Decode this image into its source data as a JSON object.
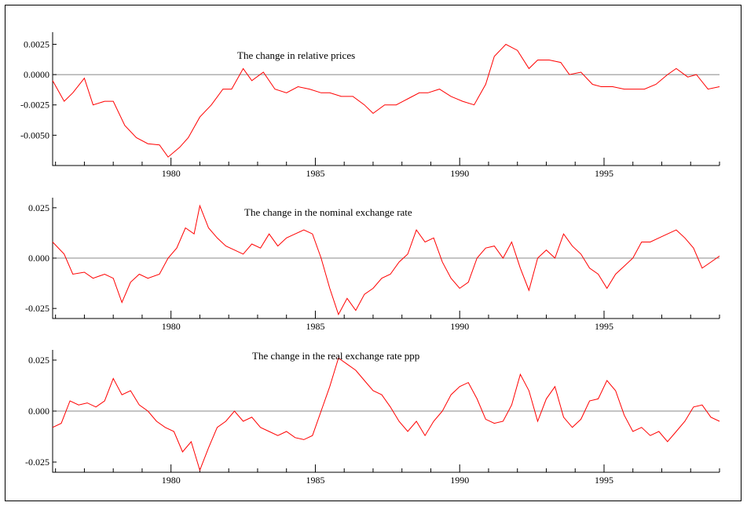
{
  "chart_data": [
    {
      "type": "line",
      "title": "The change in relative prices",
      "xlim": [
        1975.9,
        1999.0
      ],
      "ylim": [
        -0.0075,
        0.0035
      ],
      "xticks": [
        1980,
        1985,
        1990,
        1995
      ],
      "yticks": [
        0.0025,
        0.0,
        -0.0025,
        -0.005
      ],
      "ytick_labels": [
        "0.0025",
        "0.0000",
        "-0.0025",
        "-0.0050"
      ],
      "reference_line": 0,
      "series": [
        {
          "color": "#ff0000",
          "x": [
            1975.9,
            1976.3,
            1976.6,
            1977.0,
            1977.3,
            1977.7,
            1978.0,
            1978.4,
            1978.8,
            1979.2,
            1979.6,
            1979.9,
            1980.3,
            1980.6,
            1981.0,
            1981.4,
            1981.8,
            1982.1,
            1982.5,
            1982.8,
            1983.2,
            1983.6,
            1984.0,
            1984.4,
            1984.8,
            1985.2,
            1985.5,
            1985.9,
            1986.3,
            1986.7,
            1987.0,
            1987.4,
            1987.8,
            1988.2,
            1988.6,
            1988.9,
            1989.3,
            1989.7,
            1990.1,
            1990.5,
            1990.9,
            1991.2,
            1991.6,
            1992.0,
            1992.4,
            1992.7,
            1993.1,
            1993.5,
            1993.8,
            1994.2,
            1994.6,
            1994.9,
            1995.3,
            1995.7,
            1996.1,
            1996.4,
            1996.8,
            1997.2,
            1997.5,
            1997.9,
            1998.2,
            1998.6,
            1999.0
          ],
          "y": [
            -0.0005,
            -0.0022,
            -0.0015,
            -0.0003,
            -0.0025,
            -0.0022,
            -0.0022,
            -0.0042,
            -0.0052,
            -0.0057,
            -0.0058,
            -0.0068,
            -0.006,
            -0.0052,
            -0.0035,
            -0.0025,
            -0.0012,
            -0.0012,
            0.0005,
            -0.0005,
            0.0002,
            -0.0012,
            -0.0015,
            -0.001,
            -0.0012,
            -0.0015,
            -0.0015,
            -0.0018,
            -0.0018,
            -0.0025,
            -0.0032,
            -0.0025,
            -0.0025,
            -0.002,
            -0.0015,
            -0.0015,
            -0.0012,
            -0.0018,
            -0.0022,
            -0.0025,
            -0.0008,
            0.0015,
            0.0025,
            0.002,
            0.0005,
            0.0012,
            0.0012,
            0.001,
            0.0,
            0.0002,
            -0.0008,
            -0.001,
            -0.001,
            -0.0012,
            -0.0012,
            -0.0012,
            -0.0008,
            0.0,
            0.0005,
            -0.0002,
            0.0,
            -0.0012,
            -0.001
          ]
        }
      ]
    },
    {
      "type": "line",
      "title": "The change in the nominal exchange rate",
      "xlim": [
        1975.9,
        1999.0
      ],
      "ylim": [
        -0.03,
        0.03
      ],
      "xticks": [
        1980,
        1985,
        1990,
        1995
      ],
      "yticks": [
        0.025,
        0.0,
        -0.025
      ],
      "ytick_labels": [
        "0.025",
        "0.000",
        "-0.025"
      ],
      "reference_line": 0,
      "series": [
        {
          "color": "#ff0000",
          "x": [
            1975.9,
            1976.3,
            1976.6,
            1977.0,
            1977.3,
            1977.7,
            1978.0,
            1978.3,
            1978.6,
            1978.9,
            1979.2,
            1979.6,
            1979.9,
            1980.2,
            1980.5,
            1980.8,
            1981.0,
            1981.3,
            1981.6,
            1981.9,
            1982.2,
            1982.5,
            1982.8,
            1983.1,
            1983.4,
            1983.7,
            1984.0,
            1984.3,
            1984.6,
            1984.9,
            1985.2,
            1985.5,
            1985.8,
            1986.1,
            1986.4,
            1986.7,
            1987.0,
            1987.3,
            1987.6,
            1987.9,
            1988.2,
            1988.5,
            1988.8,
            1989.1,
            1989.4,
            1989.7,
            1990.0,
            1990.3,
            1990.6,
            1990.9,
            1991.2,
            1991.5,
            1991.8,
            1992.1,
            1992.4,
            1992.7,
            1993.0,
            1993.3,
            1993.6,
            1993.9,
            1994.2,
            1994.5,
            1994.8,
            1995.1,
            1995.4,
            1995.7,
            1996.0,
            1996.3,
            1996.6,
            1996.9,
            1997.2,
            1997.5,
            1997.8,
            1998.1,
            1998.4,
            1998.7,
            1999.0
          ],
          "y": [
            0.008,
            0.002,
            -0.008,
            -0.007,
            -0.01,
            -0.008,
            -0.01,
            -0.022,
            -0.012,
            -0.008,
            -0.01,
            -0.008,
            0.0,
            0.005,
            0.015,
            0.012,
            0.026,
            0.015,
            0.01,
            0.006,
            0.004,
            0.002,
            0.007,
            0.005,
            0.012,
            0.006,
            0.01,
            0.012,
            0.014,
            0.012,
            0.0,
            -0.015,
            -0.028,
            -0.02,
            -0.026,
            -0.018,
            -0.015,
            -0.01,
            -0.008,
            -0.002,
            0.002,
            0.014,
            0.008,
            0.01,
            -0.002,
            -0.01,
            -0.015,
            -0.012,
            0.0,
            0.005,
            0.006,
            0.0,
            0.008,
            -0.005,
            -0.016,
            0.0,
            0.004,
            0.0,
            0.012,
            0.006,
            0.002,
            -0.005,
            -0.008,
            -0.015,
            -0.008,
            -0.004,
            0.0,
            0.008,
            0.008,
            0.01,
            0.012,
            0.014,
            0.01,
            0.005,
            -0.005,
            -0.002,
            0.001
          ]
        }
      ]
    },
    {
      "type": "line",
      "title": "The change in the real exchange rate  ppp",
      "xlim": [
        1975.9,
        1999.0
      ],
      "ylim": [
        -0.03,
        0.03
      ],
      "xticks": [
        1980,
        1985,
        1990,
        1995
      ],
      "yticks": [
        0.025,
        0.0,
        -0.025
      ],
      "ytick_labels": [
        "0.025",
        "0.000",
        "-0.025"
      ],
      "reference_line": 0,
      "series": [
        {
          "color": "#ff0000",
          "x": [
            1975.9,
            1976.2,
            1976.5,
            1976.8,
            1977.1,
            1977.4,
            1977.7,
            1978.0,
            1978.3,
            1978.6,
            1978.9,
            1979.2,
            1979.5,
            1979.8,
            1980.1,
            1980.4,
            1980.7,
            1981.0,
            1981.3,
            1981.6,
            1981.9,
            1982.2,
            1982.5,
            1982.8,
            1983.1,
            1983.4,
            1983.7,
            1984.0,
            1984.3,
            1984.6,
            1984.9,
            1985.2,
            1985.5,
            1985.8,
            1986.1,
            1986.4,
            1986.7,
            1987.0,
            1987.3,
            1987.6,
            1987.9,
            1988.2,
            1988.5,
            1988.8,
            1989.1,
            1989.4,
            1989.7,
            1990.0,
            1990.3,
            1990.6,
            1990.9,
            1991.2,
            1991.5,
            1991.8,
            1992.1,
            1992.4,
            1992.7,
            1993.0,
            1993.3,
            1993.6,
            1993.9,
            1994.2,
            1994.5,
            1994.8,
            1995.1,
            1995.4,
            1995.7,
            1996.0,
            1996.3,
            1996.6,
            1996.9,
            1997.2,
            1997.5,
            1997.8,
            1998.1,
            1998.4,
            1998.7,
            1999.0
          ],
          "y": [
            -0.008,
            -0.006,
            0.005,
            0.003,
            0.004,
            0.002,
            0.005,
            0.016,
            0.008,
            0.01,
            0.003,
            0.0,
            -0.005,
            -0.008,
            -0.01,
            -0.02,
            -0.015,
            -0.029,
            -0.018,
            -0.008,
            -0.005,
            0.0,
            -0.005,
            -0.003,
            -0.008,
            -0.01,
            -0.012,
            -0.01,
            -0.013,
            -0.014,
            -0.012,
            0.0,
            0.012,
            0.026,
            0.023,
            0.02,
            0.015,
            0.01,
            0.008,
            0.002,
            -0.005,
            -0.01,
            -0.005,
            -0.012,
            -0.005,
            0.0,
            0.008,
            0.012,
            0.014,
            0.006,
            -0.004,
            -0.006,
            -0.005,
            0.003,
            0.018,
            0.01,
            -0.005,
            0.006,
            0.012,
            -0.003,
            -0.008,
            -0.004,
            0.005,
            0.006,
            0.015,
            0.01,
            -0.002,
            -0.01,
            -0.008,
            -0.012,
            -0.01,
            -0.015,
            -0.01,
            -0.005,
            0.002,
            0.003,
            -0.003,
            -0.005
          ]
        }
      ]
    }
  ]
}
